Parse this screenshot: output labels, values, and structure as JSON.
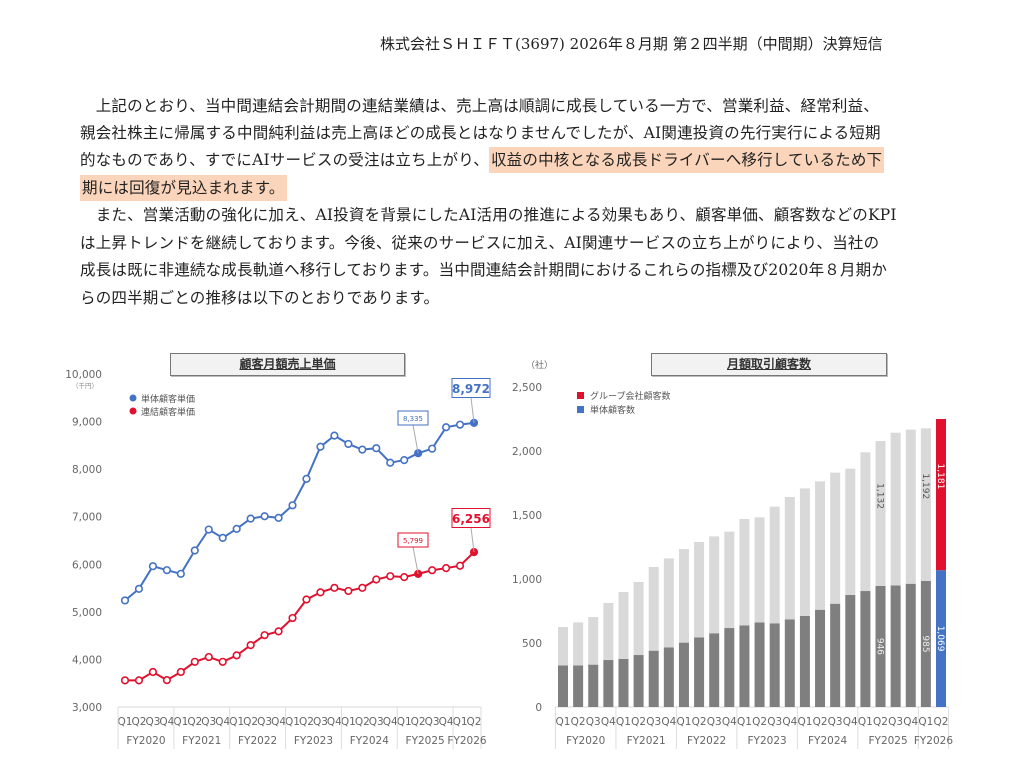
{
  "header": {
    "title": "株式会社ＳＨＩＦＴ(3697) 2026年８月期 第２四半期（中間期）決算短信"
  },
  "body": {
    "lines": [
      {
        "pre": "　上記のとおり、当中間連結会計期間の連結業績は、売上高は順調に成長している一方で、営業利益、経常利益、",
        "hl": ""
      },
      {
        "pre": "親会社株主に帰属する中間純利益は売上高ほどの成長とはなりませんでしたが、AI関連投資の先行実行による短期",
        "hl": ""
      },
      {
        "pre": "的なものであり、すでにAIサービスの受注は立ち上がり、",
        "hl": "収益の中核となる成長ドライバーへ移行しているため下"
      },
      {
        "pre": "",
        "hl": "期には回復が見込まれます。"
      },
      {
        "pre": "　また、営業活動の強化に加え、AI投資を背景にしたAI活用の推進による効果もあり、顧客単価、顧客数などのKPI",
        "hl": ""
      },
      {
        "pre": "は上昇トレンドを継続しております。今後、従来のサービスに加え、AI関連サービスの立ち上がりにより、当社の",
        "hl": ""
      },
      {
        "pre": "成長は既に非連続な成長軌道へ移行しております。当中間連結会計期間におけるこれらの指標及び2020年８月期か",
        "hl": ""
      },
      {
        "pre": "らの四半期ごとの推移は以下のとおりであります。",
        "hl": ""
      }
    ]
  },
  "chart_data": [
    {
      "type": "line",
      "title": "顧客月額売上単価",
      "ylabel": "（千円）",
      "ylim": [
        3000,
        10000
      ],
      "yticks": [
        "3,000",
        "4,000",
        "5,000",
        "6,000",
        "7,000",
        "8,000",
        "9,000",
        "10,000"
      ],
      "quarters": [
        "Q1",
        "Q2",
        "Q3",
        "Q4",
        "Q1",
        "Q2",
        "Q3",
        "Q4",
        "Q1",
        "Q2",
        "Q3",
        "Q4",
        "Q1",
        "Q2",
        "Q3",
        "Q4",
        "Q1",
        "Q2",
        "Q3",
        "Q4",
        "Q1",
        "Q2",
        "Q3",
        "Q4",
        "Q1",
        "Q2"
      ],
      "years": [
        "FY2020",
        "FY2021",
        "FY2022",
        "FY2023",
        "FY2024",
        "FY2025",
        "FY2026"
      ],
      "series": [
        {
          "name": "単体顧客単価",
          "color": "#4472c4",
          "values": [
            5240,
            5484,
            5960,
            5876,
            5800,
            6290,
            6730,
            6555,
            6745,
            6960,
            7010,
            6975,
            7240,
            7795,
            8470,
            8705,
            8530,
            8410,
            8440,
            8135,
            8190,
            8335,
            8430,
            8880,
            8935,
            8972
          ],
          "labels": [
            {
              "index": 21,
              "text": "8,335"
            },
            {
              "index": 25,
              "text": "8,972"
            }
          ]
        },
        {
          "name": "連結顧客単価",
          "color": "#e0102e",
          "values": [
            3560,
            3560,
            3735,
            3565,
            3735,
            3950,
            4050,
            3950,
            4085,
            4300,
            4510,
            4590,
            4870,
            5260,
            5410,
            5505,
            5440,
            5505,
            5680,
            5750,
            5730,
            5799,
            5875,
            5920,
            5970,
            6256
          ],
          "labels": [
            {
              "index": 21,
              "text": "5,799"
            },
            {
              "index": 25,
              "text": "6,256"
            }
          ]
        }
      ]
    },
    {
      "type": "bar",
      "title": "月額取引顧客数",
      "ylabel": "（社）",
      "ylim": [
        0,
        2500
      ],
      "yticks": [
        "0",
        "500",
        "1,000",
        "1,500",
        "2,000",
        "2,500"
      ],
      "quarters": [
        "Q1",
        "Q2",
        "Q3",
        "Q4",
        "Q1",
        "Q2",
        "Q3",
        "Q4",
        "Q1",
        "Q2",
        "Q3",
        "Q4",
        "Q1",
        "Q2",
        "Q3",
        "Q4",
        "Q1",
        "Q2",
        "Q3",
        "Q4",
        "Q1",
        "Q2",
        "Q3",
        "Q4",
        "Q1",
        "Q2"
      ],
      "years": [
        "FY2020",
        "FY2021",
        "FY2022",
        "FY2023",
        "FY2024",
        "FY2025",
        "FY2026"
      ],
      "legend": [
        {
          "name": "グループ会社顧客数",
          "color": "#e0102e"
        },
        {
          "name": "単体顧客数",
          "color": "#4472c4"
        }
      ],
      "single": [
        325,
        325,
        331,
        367,
        375,
        406,
        440,
        466,
        503,
        544,
        576,
        617,
        638,
        661,
        654,
        685,
        711,
        760,
        807,
        875,
        906,
        946,
        950,
        963,
        985,
        1069
      ],
      "group": [
        300,
        336,
        372,
        446,
        523,
        571,
        654,
        695,
        731,
        745,
        757,
        753,
        831,
        821,
        911,
        956,
        997,
        1003,
        1024,
        987,
        1084,
        1132,
        1193,
        1204,
        1192,
        1181
      ],
      "labels": [
        {
          "index": 21,
          "single": "946",
          "group": "1,132"
        },
        {
          "index": 24,
          "single": "985",
          "group": "1,192"
        },
        {
          "index": 25,
          "single": "1,069",
          "group": "1,181"
        }
      ]
    }
  ]
}
